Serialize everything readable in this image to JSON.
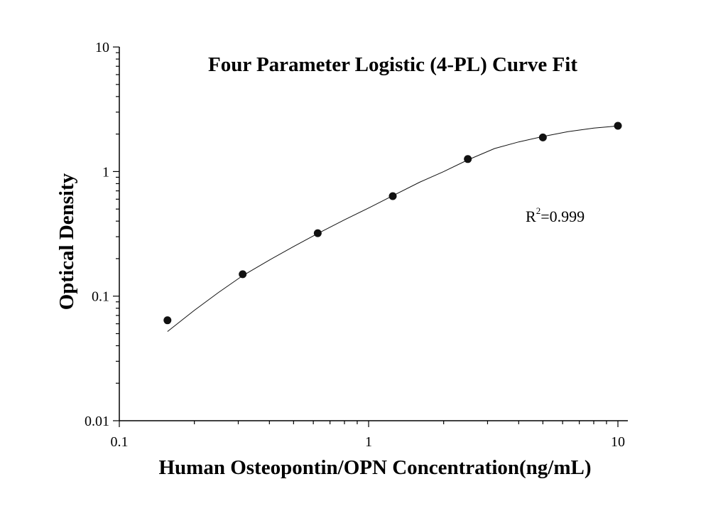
{
  "chart_data": {
    "type": "scatter",
    "title": "Four Parameter Logistic (4-PL) Curve Fit",
    "xlabel": "Human Osteopontin/OPN Concentration(ng/mL)",
    "ylabel": "Optical Density",
    "x_scale": "log",
    "y_scale": "log",
    "xlim": [
      0.1,
      12
    ],
    "ylim": [
      0.01,
      10
    ],
    "x_ticks": [
      {
        "value": 0.1,
        "label": "0.1"
      },
      {
        "value": 1,
        "label": "1"
      },
      {
        "value": 10,
        "label": "10"
      }
    ],
    "y_ticks": [
      {
        "value": 0.01,
        "label": "0.01"
      },
      {
        "value": 0.1,
        "label": "0.1"
      },
      {
        "value": 1,
        "label": "1"
      },
      {
        "value": 10,
        "label": "10"
      }
    ],
    "points": [
      {
        "x": 0.156,
        "y": 0.064
      },
      {
        "x": 0.3125,
        "y": 0.15
      },
      {
        "x": 0.625,
        "y": 0.32
      },
      {
        "x": 1.25,
        "y": 0.635
      },
      {
        "x": 2.5,
        "y": 1.26
      },
      {
        "x": 5,
        "y": 1.88
      },
      {
        "x": 10,
        "y": 2.33
      }
    ],
    "fit": {
      "model": "4-PL",
      "x_range": [
        0.156,
        10
      ],
      "samples": [
        [
          0.156,
          0.052
        ],
        [
          0.2,
          0.077
        ],
        [
          0.25,
          0.107
        ],
        [
          0.3125,
          0.146
        ],
        [
          0.4,
          0.195
        ],
        [
          0.5,
          0.25
        ],
        [
          0.625,
          0.318
        ],
        [
          0.8,
          0.41
        ],
        [
          1.0,
          0.51
        ],
        [
          1.25,
          0.64
        ],
        [
          1.6,
          0.82
        ],
        [
          2.0,
          1.0
        ],
        [
          2.5,
          1.24
        ],
        [
          3.2,
          1.53
        ],
        [
          4.0,
          1.73
        ],
        [
          5.0,
          1.91
        ],
        [
          6.3,
          2.09
        ],
        [
          8.0,
          2.23
        ],
        [
          10.0,
          2.32
        ]
      ]
    },
    "annotation": {
      "base": "R",
      "sup": "2",
      "rest": "=0.999"
    },
    "grid": false,
    "legend": "none",
    "colors": {
      "marker": "#111111",
      "line": "#111111",
      "axis": "#000000"
    }
  }
}
